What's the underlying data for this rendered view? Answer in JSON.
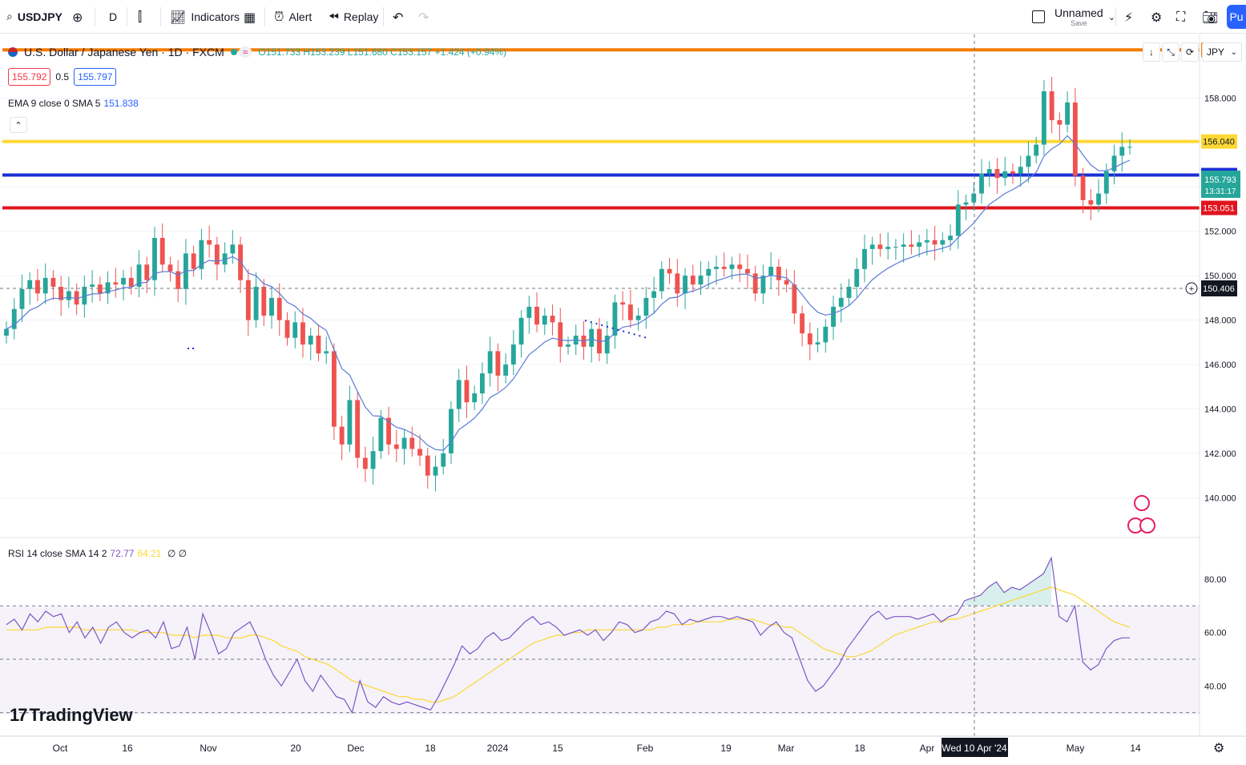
{
  "toolbar": {
    "symbol": "USDJPY",
    "interval": "D",
    "indicators_label": "Indicators",
    "alert_label": "Alert",
    "replay_label": "Replay",
    "layout_name": "Unnamed",
    "layout_save": "Save",
    "publish_label": "Pu"
  },
  "legend": {
    "title": "U.S. Dollar / Japanese Yen · 1D · FXCM",
    "ohlc": "O151.733 H153.239 L151.680 C153.157 +1.424 (+0.94%)",
    "bid": "155.792",
    "spread": "0.5",
    "ask": "155.797"
  },
  "ema_legend": {
    "label": "EMA 9 close 0 SMA 5",
    "value": "151.838"
  },
  "rsi_legend": {
    "label": "RSI 14 close SMA 14 2",
    "rsi": "72.77",
    "sma": "64.21",
    "tail": "∅ ∅"
  },
  "currency": "JPY",
  "logo": "TradingView",
  "colors": {
    "up": "#26a69a",
    "down": "#ef5350",
    "ema": "#5b7bd5",
    "rsi": "#7e57c2",
    "rsi_sma": "#fdd835"
  },
  "chart_data": {
    "type": "candlestick",
    "symbol": "USDJPY",
    "interval": "1D",
    "price_axis": [
      "158.000",
      "156.000",
      "154.000",
      "152.000",
      "150.000",
      "148.000",
      "146.000",
      "144.000",
      "142.000",
      "140.000"
    ],
    "ylim": [
      138.5,
      160.5
    ],
    "time_axis": [
      "Oct",
      "16",
      "Nov",
      "20",
      "Dec",
      "18",
      "2024",
      "15",
      "Feb",
      "19",
      "Mar",
      "18",
      "Apr",
      "May",
      "14"
    ],
    "crosshair_time": "Wed 10 Apr '24",
    "crosshair_price": "150.406",
    "horizontal_lines": [
      {
        "price": 160.165,
        "label": "160.165",
        "color": "#f57c00"
      },
      {
        "price": 156.04,
        "label": "156.040",
        "color": "#fdd835"
      },
      {
        "price": 154.529,
        "label": "154.529",
        "color": "#1b2fd6"
      },
      {
        "price": 153.051,
        "label": "153.051",
        "color": "#e0141e"
      }
    ],
    "last_price": {
      "label": "155.793",
      "countdown": "13:31:17"
    },
    "closes": [
      147.6,
      148.5,
      149.4,
      149.8,
      149.2,
      149.9,
      149.5,
      148.9,
      149.3,
      148.7,
      149.5,
      149.6,
      149.2,
      149.7,
      149.6,
      149.9,
      149.5,
      150.5,
      149.8,
      151.7,
      150.5,
      150.2,
      149.4,
      151.0,
      150.3,
      151.6,
      151.4,
      150.5,
      151.0,
      151.4,
      149.8,
      148.0,
      149.5,
      148.2,
      149.0,
      148.0,
      147.2,
      147.9,
      146.9,
      147.3,
      146.5,
      146.6,
      143.2,
      142.4,
      144.4,
      141.8,
      141.3,
      142.1,
      143.6,
      142.4,
      142.2,
      142.7,
      142.2,
      141.9,
      141.0,
      141.4,
      142.0,
      144.0,
      145.3,
      144.3,
      144.7,
      145.6,
      146.6,
      145.5,
      146.0,
      146.9,
      148.1,
      148.6,
      147.8,
      148.2,
      147.9,
      146.8,
      146.9,
      147.3,
      146.8,
      147.6,
      146.5,
      147.3,
      148.8,
      148.7,
      148.0,
      148.2,
      149.0,
      149.3,
      150.3,
      150.1,
      149.2,
      150.0,
      149.6,
      150.0,
      150.3,
      150.4,
      150.3,
      150.5,
      150.3,
      150.1,
      149.2,
      150.0,
      150.4,
      149.8,
      149.6,
      148.3,
      147.4,
      146.9,
      147.0,
      147.7,
      148.6,
      149.0,
      149.5,
      150.3,
      151.2,
      151.4,
      151.2,
      151.3,
      151.3,
      151.4,
      151.3,
      151.5,
      151.6,
      151.4,
      151.6,
      151.8,
      153.2,
      153.3,
      153.7,
      154.6,
      154.8,
      154.4,
      154.7,
      154.6,
      154.9,
      155.4,
      155.9,
      158.3,
      157.0,
      156.8,
      157.8,
      154.5,
      153.4,
      153.2,
      153.7,
      154.7,
      155.4,
      155.8,
      155.8
    ],
    "rsi_values": [
      63,
      65,
      61,
      67,
      64,
      68,
      66,
      67,
      60,
      64,
      58,
      62,
      56,
      62,
      64,
      60,
      58,
      60,
      61,
      58,
      64,
      54,
      55,
      62,
      50,
      67,
      60,
      52,
      54,
      60,
      62,
      64,
      58,
      50,
      44,
      40,
      45,
      50,
      42,
      38,
      44,
      40,
      36,
      35,
      30,
      42,
      34,
      32,
      36,
      34,
      33,
      34,
      33,
      32,
      31,
      36,
      42,
      48,
      55,
      52,
      54,
      58,
      60,
      57,
      58,
      61,
      64,
      66,
      63,
      64,
      62,
      59,
      60,
      61,
      59,
      61,
      57,
      60,
      64,
      63,
      60,
      61,
      64,
      65,
      68,
      67,
      63,
      65,
      64,
      65,
      66,
      66,
      65,
      66,
      65,
      64,
      59,
      62,
      64,
      60,
      58,
      50,
      42,
      38,
      40,
      44,
      48,
      54,
      58,
      62,
      66,
      68,
      65,
      66,
      66,
      66,
      65,
      66,
      67,
      64,
      66,
      67,
      72,
      73,
      74,
      77,
      79,
      75,
      77,
      76,
      78,
      80,
      82,
      88,
      66,
      64,
      70,
      49,
      46,
      48,
      54,
      57,
      58,
      58
    ],
    "rsi_sma_values": [
      61,
      61,
      61,
      61,
      61,
      62,
      62,
      62,
      62,
      62,
      61,
      61,
      61,
      61,
      61,
      61,
      61,
      60,
      60,
      60,
      60,
      59,
      59,
      59,
      58,
      59,
      59,
      59,
      58,
      58,
      58,
      59,
      59,
      58,
      57,
      55,
      54,
      53,
      51,
      50,
      49,
      48,
      46,
      44,
      42,
      41,
      40,
      39,
      38,
      37,
      36,
      36,
      35,
      35,
      34,
      34,
      35,
      36,
      38,
      40,
      42,
      44,
      46,
      48,
      50,
      52,
      54,
      56,
      57,
      58,
      59,
      59,
      60,
      60,
      61,
      61,
      61,
      61,
      61,
      61,
      61,
      61,
      61,
      62,
      62,
      63,
      63,
      63,
      64,
      64,
      64,
      64,
      65,
      65,
      65,
      65,
      64,
      63,
      63,
      62,
      62,
      60,
      58,
      56,
      54,
      53,
      52,
      51,
      51,
      52,
      53,
      55,
      57,
      59,
      60,
      61,
      62,
      63,
      64,
      64,
      65,
      65,
      66,
      67,
      68,
      69,
      70,
      71,
      72,
      73,
      74,
      75,
      76,
      77,
      76,
      75,
      74,
      72,
      70,
      68,
      66,
      64,
      63,
      62
    ],
    "rsi_axis": [
      "80.00",
      "60.00",
      "40.00"
    ],
    "rsi_levels": [
      70,
      50,
      30
    ],
    "rsi_ylim": [
      26,
      92
    ]
  }
}
